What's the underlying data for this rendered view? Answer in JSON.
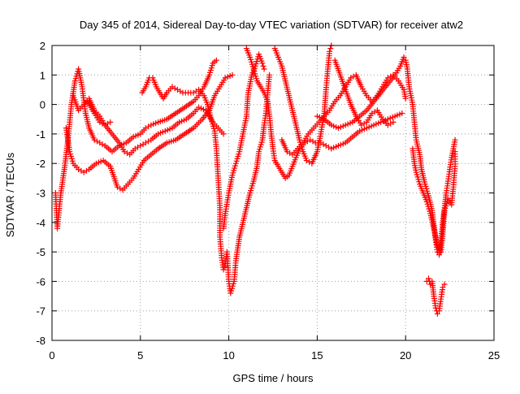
{
  "chart_data": {
    "type": "scatter",
    "title": "Day 345 of 2014, Sidereal Day-to-day VTEC variation (SDTVAR) for receiver atw2",
    "xlabel": "GPS time / hours",
    "ylabel": "SDTVAR / TECUs",
    "xlim": [
      0,
      25
    ],
    "ylim": [
      -8,
      2
    ],
    "xticks": [
      0,
      5,
      10,
      15,
      20,
      25
    ],
    "yticks": [
      -8,
      -7,
      -6,
      -5,
      -4,
      -3,
      -2,
      -1,
      0,
      1,
      2
    ],
    "xtick_labels": [
      "0",
      "5",
      "10",
      "15",
      "20",
      "25"
    ],
    "ytick_labels": [
      "-8",
      "-7",
      "-6",
      "-5",
      "-4",
      "-3",
      "-2",
      "-1",
      "0",
      "1",
      "2"
    ],
    "grid": true,
    "marker": "+",
    "color": "#ff0000",
    "series": [
      {
        "points": [
          [
            0.2,
            -3.0
          ],
          [
            0.3,
            -4.2
          ],
          [
            0.5,
            -3.0
          ],
          [
            0.7,
            -2.2
          ],
          [
            0.9,
            -1.2
          ],
          [
            1.1,
            0.0
          ],
          [
            1.3,
            0.8
          ],
          [
            1.5,
            1.2
          ],
          [
            1.7,
            0.6
          ],
          [
            1.9,
            -0.3
          ],
          [
            2.1,
            -0.8
          ],
          [
            2.4,
            -1.2
          ],
          [
            2.7,
            -1.3
          ],
          [
            3.0,
            -1.4
          ],
          [
            3.4,
            -1.6
          ],
          [
            3.8,
            -1.4
          ],
          [
            4.2,
            -1.3
          ],
          [
            4.6,
            -1.1
          ],
          [
            5.0,
            -1.0
          ],
          [
            5.3,
            -0.8
          ],
          [
            5.6,
            -0.7
          ],
          [
            6.0,
            -0.6
          ],
          [
            6.5,
            -0.5
          ],
          [
            7.0,
            -0.3
          ],
          [
            7.5,
            -0.1
          ],
          [
            8.0,
            0.1
          ],
          [
            8.3,
            0.3
          ],
          [
            8.6,
            0.6
          ],
          [
            8.9,
            1.0
          ],
          [
            9.1,
            1.4
          ],
          [
            9.3,
            1.5
          ]
        ]
      },
      {
        "points": [
          [
            0.8,
            -0.8
          ],
          [
            1.0,
            -1.6
          ],
          [
            1.2,
            -2.0
          ],
          [
            1.5,
            -2.2
          ],
          [
            1.8,
            -2.3
          ],
          [
            2.1,
            -2.2
          ],
          [
            2.5,
            -2.0
          ],
          [
            2.9,
            -1.9
          ],
          [
            3.3,
            -2.1
          ],
          [
            3.7,
            -2.8
          ],
          [
            4.0,
            -2.9
          ],
          [
            4.3,
            -2.7
          ],
          [
            4.6,
            -2.5
          ],
          [
            4.9,
            -2.2
          ],
          [
            5.2,
            -1.9
          ],
          [
            5.6,
            -1.7
          ],
          [
            6.0,
            -1.5
          ],
          [
            6.5,
            -1.3
          ],
          [
            7.0,
            -1.2
          ],
          [
            7.5,
            -1.0
          ],
          [
            8.0,
            -0.8
          ],
          [
            8.5,
            -0.5
          ],
          [
            8.9,
            -0.2
          ],
          [
            9.2,
            0.3
          ],
          [
            9.5,
            0.6
          ],
          [
            9.8,
            0.9
          ],
          [
            10.2,
            1.0
          ]
        ]
      },
      {
        "points": [
          [
            1.2,
            0.3
          ],
          [
            1.5,
            -0.2
          ],
          [
            1.8,
            0.0
          ],
          [
            2.1,
            0.2
          ],
          [
            2.4,
            -0.2
          ],
          [
            2.7,
            -0.4
          ],
          [
            3.0,
            -0.7
          ],
          [
            3.4,
            -1.0
          ],
          [
            3.8,
            -1.3
          ],
          [
            4.1,
            -1.6
          ],
          [
            4.4,
            -1.7
          ],
          [
            4.7,
            -1.5
          ],
          [
            5.0,
            -1.4
          ],
          [
            5.3,
            -1.3
          ],
          [
            5.6,
            -1.2
          ],
          [
            6.0,
            -1.0
          ],
          [
            6.4,
            -0.9
          ],
          [
            6.8,
            -0.8
          ],
          [
            7.2,
            -0.6
          ],
          [
            7.6,
            -0.5
          ],
          [
            8.0,
            -0.3
          ],
          [
            8.3,
            -0.1
          ],
          [
            8.7,
            -0.2
          ],
          [
            9.1,
            -0.6
          ],
          [
            9.4,
            -0.8
          ],
          [
            9.7,
            -1.0
          ]
        ]
      },
      {
        "points": [
          [
            5.1,
            0.4
          ],
          [
            5.3,
            0.6
          ],
          [
            5.5,
            0.9
          ],
          [
            5.7,
            0.9
          ],
          [
            5.9,
            0.6
          ],
          [
            6.1,
            0.4
          ],
          [
            6.3,
            0.2
          ],
          [
            6.5,
            0.4
          ],
          [
            6.8,
            0.6
          ],
          [
            7.1,
            0.5
          ],
          [
            7.4,
            0.4
          ],
          [
            7.7,
            0.4
          ],
          [
            8.0,
            0.4
          ],
          [
            8.3,
            0.5
          ],
          [
            8.6,
            0.3
          ],
          [
            8.8,
            0.0
          ],
          [
            9.0,
            -0.5
          ],
          [
            9.2,
            -0.9
          ],
          [
            9.3,
            -1.5
          ],
          [
            9.4,
            -2.5
          ],
          [
            9.5,
            -3.5
          ],
          [
            9.5,
            -4.5
          ],
          [
            9.6,
            -5.2
          ],
          [
            9.7,
            -5.6
          ],
          [
            9.8,
            -5.4
          ],
          [
            9.9,
            -5.0
          ],
          [
            10.0,
            -6.0
          ],
          [
            10.1,
            -6.4
          ],
          [
            10.3,
            -6.0
          ],
          [
            10.4,
            -5.3
          ],
          [
            10.6,
            -4.5
          ],
          [
            10.8,
            -4.0
          ],
          [
            11.0,
            -3.5
          ],
          [
            11.2,
            -3.0
          ],
          [
            11.4,
            -2.6
          ],
          [
            11.6,
            -2.1
          ],
          [
            11.7,
            -1.6
          ],
          [
            11.9,
            -1.2
          ],
          [
            12.0,
            -0.7
          ],
          [
            12.1,
            -0.3
          ],
          [
            12.2,
            0.4
          ],
          [
            12.3,
            1.0
          ]
        ]
      },
      {
        "points": [
          [
            9.7,
            -4.2
          ],
          [
            9.8,
            -3.7
          ],
          [
            10.0,
            -3.0
          ],
          [
            10.2,
            -2.4
          ],
          [
            10.4,
            -2.0
          ],
          [
            10.6,
            -1.6
          ],
          [
            10.8,
            -1.0
          ],
          [
            11.0,
            -0.4
          ],
          [
            11.1,
            0.4
          ],
          [
            11.3,
            1.0
          ],
          [
            11.5,
            1.3
          ],
          [
            11.7,
            1.7
          ],
          [
            11.9,
            1.4
          ],
          [
            12.0,
            1.2
          ]
        ]
      },
      {
        "points": [
          [
            11.0,
            1.9
          ],
          [
            11.2,
            1.6
          ],
          [
            11.4,
            1.2
          ],
          [
            11.6,
            0.8
          ],
          [
            11.8,
            0.6
          ],
          [
            12.0,
            0.4
          ],
          [
            12.2,
            0.1
          ],
          [
            12.3,
            -0.4
          ],
          [
            12.4,
            -1.0
          ],
          [
            12.5,
            -1.5
          ],
          [
            12.6,
            -1.9
          ],
          [
            12.8,
            -2.1
          ],
          [
            13.0,
            -2.3
          ],
          [
            13.2,
            -2.5
          ],
          [
            13.4,
            -2.4
          ],
          [
            13.6,
            -2.1
          ],
          [
            13.8,
            -1.8
          ],
          [
            14.0,
            -1.5
          ],
          [
            14.3,
            -1.3
          ],
          [
            14.6,
            -1.2
          ],
          [
            14.9,
            -1.3
          ],
          [
            15.2,
            -1.3
          ],
          [
            15.5,
            -1.4
          ],
          [
            15.8,
            -1.5
          ],
          [
            16.2,
            -1.4
          ],
          [
            16.6,
            -1.3
          ],
          [
            17.0,
            -1.1
          ],
          [
            17.4,
            -0.9
          ],
          [
            17.8,
            -0.8
          ],
          [
            18.2,
            -0.7
          ],
          [
            18.6,
            -0.6
          ],
          [
            19.0,
            -0.5
          ],
          [
            19.4,
            -0.4
          ],
          [
            19.8,
            -0.3
          ]
        ]
      },
      {
        "points": [
          [
            12.6,
            1.9
          ],
          [
            12.8,
            1.6
          ],
          [
            13.0,
            1.3
          ],
          [
            13.2,
            0.8
          ],
          [
            13.4,
            0.3
          ],
          [
            13.6,
            -0.2
          ],
          [
            13.8,
            -0.7
          ],
          [
            14.0,
            -1.2
          ],
          [
            14.2,
            -1.6
          ],
          [
            14.4,
            -1.9
          ],
          [
            14.7,
            -2.0
          ],
          [
            15.0,
            -1.6
          ],
          [
            15.2,
            -1.0
          ],
          [
            15.4,
            -0.3
          ],
          [
            15.5,
            0.5
          ],
          [
            15.6,
            1.2
          ],
          [
            15.7,
            1.8
          ],
          [
            15.8,
            2.0
          ]
        ]
      },
      {
        "points": [
          [
            13.0,
            -1.2
          ],
          [
            13.3,
            -1.6
          ],
          [
            13.6,
            -1.7
          ],
          [
            13.9,
            -1.5
          ],
          [
            14.2,
            -1.3
          ],
          [
            14.5,
            -1.0
          ],
          [
            14.8,
            -0.8
          ],
          [
            15.1,
            -0.6
          ],
          [
            15.4,
            -0.4
          ],
          [
            15.7,
            -0.2
          ],
          [
            16.0,
            0.1
          ],
          [
            16.3,
            0.3
          ],
          [
            16.6,
            0.6
          ],
          [
            16.9,
            0.9
          ],
          [
            17.2,
            1.0
          ],
          [
            17.5,
            0.6
          ],
          [
            17.8,
            0.3
          ],
          [
            18.1,
            0.1
          ],
          [
            18.4,
            0.3
          ],
          [
            18.7,
            0.6
          ],
          [
            19.0,
            0.9
          ],
          [
            19.3,
            1.0
          ],
          [
            19.6,
            0.8
          ],
          [
            19.9,
            0.5
          ],
          [
            20.0,
            0.2
          ]
        ]
      },
      {
        "points": [
          [
            15.0,
            -0.4
          ],
          [
            15.4,
            -0.5
          ],
          [
            15.8,
            -0.7
          ],
          [
            16.2,
            -0.8
          ],
          [
            16.6,
            -0.7
          ],
          [
            17.0,
            -0.6
          ],
          [
            17.4,
            -0.4
          ],
          [
            17.8,
            -0.2
          ],
          [
            18.2,
            0.1
          ],
          [
            18.6,
            0.4
          ],
          [
            19.0,
            0.7
          ],
          [
            19.4,
            1.0
          ],
          [
            19.7,
            1.3
          ],
          [
            19.9,
            1.6
          ],
          [
            20.0,
            1.5
          ],
          [
            20.1,
            1.2
          ],
          [
            20.2,
            0.6
          ],
          [
            20.4,
            0.0
          ],
          [
            20.5,
            -0.6
          ],
          [
            20.6,
            -1.2
          ],
          [
            20.8,
            -1.7
          ],
          [
            20.9,
            -2.2
          ],
          [
            21.1,
            -2.7
          ],
          [
            21.3,
            -3.1
          ],
          [
            21.5,
            -3.6
          ],
          [
            21.6,
            -4.1
          ],
          [
            21.7,
            -4.6
          ],
          [
            21.8,
            -5.0
          ],
          [
            21.9,
            -5.1
          ],
          [
            22.0,
            -4.6
          ],
          [
            22.1,
            -4.0
          ],
          [
            22.2,
            -3.5
          ],
          [
            22.3,
            -3.0
          ],
          [
            22.4,
            -2.6
          ],
          [
            22.5,
            -2.2
          ],
          [
            22.6,
            -1.8
          ],
          [
            22.7,
            -1.5
          ],
          [
            22.8,
            -1.2
          ]
        ]
      },
      {
        "points": [
          [
            20.4,
            -1.5
          ],
          [
            20.5,
            -2.0
          ],
          [
            20.6,
            -2.3
          ],
          [
            20.8,
            -2.7
          ],
          [
            21.0,
            -3.0
          ],
          [
            21.2,
            -3.3
          ],
          [
            21.4,
            -3.7
          ],
          [
            21.6,
            -4.2
          ],
          [
            21.8,
            -4.8
          ],
          [
            22.0,
            -5.0
          ],
          [
            22.1,
            -4.4
          ],
          [
            22.2,
            -3.6
          ],
          [
            22.4,
            -3.2
          ],
          [
            22.6,
            -3.4
          ],
          [
            22.7,
            -2.8
          ],
          [
            22.8,
            -2.1
          ],
          [
            22.8,
            -1.6
          ]
        ]
      },
      {
        "points": [
          [
            21.2,
            -6.0
          ],
          [
            21.3,
            -5.9
          ],
          [
            21.4,
            -6.1
          ],
          [
            21.5,
            -6.0
          ],
          [
            21.6,
            -6.5
          ],
          [
            21.7,
            -6.9
          ],
          [
            21.8,
            -7.1
          ],
          [
            21.9,
            -7.0
          ],
          [
            22.0,
            -6.6
          ],
          [
            22.1,
            -6.2
          ],
          [
            22.2,
            -6.1
          ]
        ]
      },
      {
        "points": [
          [
            3.3,
            -0.6
          ],
          [
            3.0,
            -0.7
          ],
          [
            2.7,
            -0.6
          ],
          [
            2.4,
            -0.3
          ],
          [
            2.2,
            -0.1
          ],
          [
            2.0,
            0.1
          ]
        ]
      },
      {
        "points": [
          [
            16.0,
            1.5
          ],
          [
            16.3,
            1.0
          ],
          [
            16.6,
            0.5
          ],
          [
            16.9,
            0.0
          ],
          [
            17.2,
            -0.4
          ],
          [
            17.5,
            -0.7
          ],
          [
            17.8,
            -0.6
          ],
          [
            18.1,
            -0.3
          ],
          [
            18.4,
            -0.2
          ],
          [
            18.7,
            -0.5
          ],
          [
            19.0,
            -0.7
          ],
          [
            19.3,
            -0.6
          ]
        ]
      }
    ]
  }
}
